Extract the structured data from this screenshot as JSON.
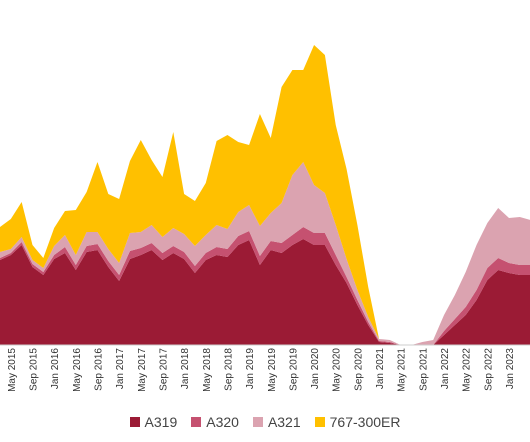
{
  "chart_data": {
    "type": "area",
    "stacked": true,
    "title": "",
    "xlabel": "",
    "ylabel": "",
    "y_axis_visible": false,
    "grid": false,
    "legend_position": "bottom",
    "x_tick_labels": [
      "May 2015",
      "Sep 2015",
      "Jan 2016",
      "May 2016",
      "Sep 2016",
      "Jan 2017",
      "May 2017",
      "Sep 2017",
      "Jan 2018",
      "May 2018",
      "Sep 2018",
      "Jan 2019",
      "May 2019",
      "Sep 2019",
      "Jan 2020",
      "May 2020",
      "Sep 2020",
      "Jan 2021",
      "May 2021",
      "Sep 2021",
      "Jan 2022",
      "May 2022",
      "Sep 2022",
      "Jan 2023"
    ],
    "x": [
      "2015-01",
      "2015-03",
      "2015-05",
      "2015-07",
      "2015-09",
      "2015-11",
      "2016-01",
      "2016-03",
      "2016-05",
      "2016-07",
      "2016-09",
      "2016-11",
      "2017-01",
      "2017-03",
      "2017-05",
      "2017-07",
      "2017-09",
      "2017-11",
      "2018-01",
      "2018-03",
      "2018-05",
      "2018-07",
      "2018-09",
      "2018-11",
      "2019-01",
      "2019-03",
      "2019-05",
      "2019-07",
      "2019-09",
      "2019-11",
      "2020-01",
      "2020-03",
      "2020-05",
      "2020-07",
      "2020-09",
      "2020-11",
      "2021-01",
      "2021-03",
      "2021-05",
      "2021-07",
      "2021-09",
      "2021-11",
      "2022-01",
      "2022-03",
      "2022-05",
      "2022-07",
      "2022-09",
      "2022-11",
      "2023-01",
      "2023-03"
    ],
    "series": [
      {
        "name": "A319",
        "color": "#9b1b35",
        "values": [
          85,
          90,
          100,
          78,
          70,
          86,
          92,
          75,
          93,
          95,
          78,
          64,
          86,
          90,
          95,
          85,
          92,
          86,
          72,
          85,
          90,
          88,
          100,
          105,
          80,
          95,
          92,
          100,
          106,
          100,
          100,
          80,
          62,
          40,
          20,
          3,
          2,
          0,
          0,
          0,
          0,
          10,
          20,
          30,
          45,
          65,
          75,
          72,
          70,
          70
        ]
      },
      {
        "name": "A320",
        "color": "#c55170",
        "values": [
          2,
          2,
          3,
          3,
          3,
          4,
          6,
          5,
          6,
          6,
          6,
          6,
          8,
          7,
          7,
          7,
          7,
          7,
          7,
          7,
          8,
          8,
          9,
          9,
          9,
          9,
          10,
          10,
          12,
          12,
          12,
          10,
          6,
          5,
          3,
          1,
          1,
          0,
          0,
          0,
          0,
          4,
          6,
          8,
          10,
          12,
          12,
          10,
          10,
          10
        ]
      },
      {
        "name": "A321",
        "color": "#dba3b0",
        "values": [
          6,
          4,
          5,
          4,
          4,
          9,
          12,
          10,
          14,
          12,
          12,
          12,
          18,
          16,
          18,
          16,
          18,
          18,
          20,
          18,
          22,
          20,
          24,
          26,
          30,
          28,
          40,
          60,
          65,
          48,
          40,
          30,
          18,
          10,
          5,
          2,
          2,
          0,
          0,
          3,
          5,
          16,
          24,
          35,
          45,
          45,
          50,
          45,
          48,
          45
        ]
      },
      {
        "name": "767-300ER",
        "color": "#ffc000",
        "values": [
          25,
          30,
          35,
          15,
          10,
          18,
          24,
          45,
          40,
          70,
          55,
          64,
          72,
          92,
          65,
          60,
          96,
          40,
          45,
          52,
          84,
          94,
          70,
          60,
          112,
          75,
          116,
          105,
          92,
          140,
          138,
          100,
          90,
          65,
          30,
          0,
          0,
          0,
          0,
          0,
          0,
          0,
          0,
          0,
          0,
          0,
          0,
          0,
          0,
          0
        ]
      }
    ]
  },
  "legend": {
    "items": [
      {
        "label": "A319",
        "color": "#9b1b35"
      },
      {
        "label": "A320",
        "color": "#c55170"
      },
      {
        "label": "A321",
        "color": "#dba3b0"
      },
      {
        "label": "767-300ER",
        "color": "#ffc000"
      }
    ]
  }
}
